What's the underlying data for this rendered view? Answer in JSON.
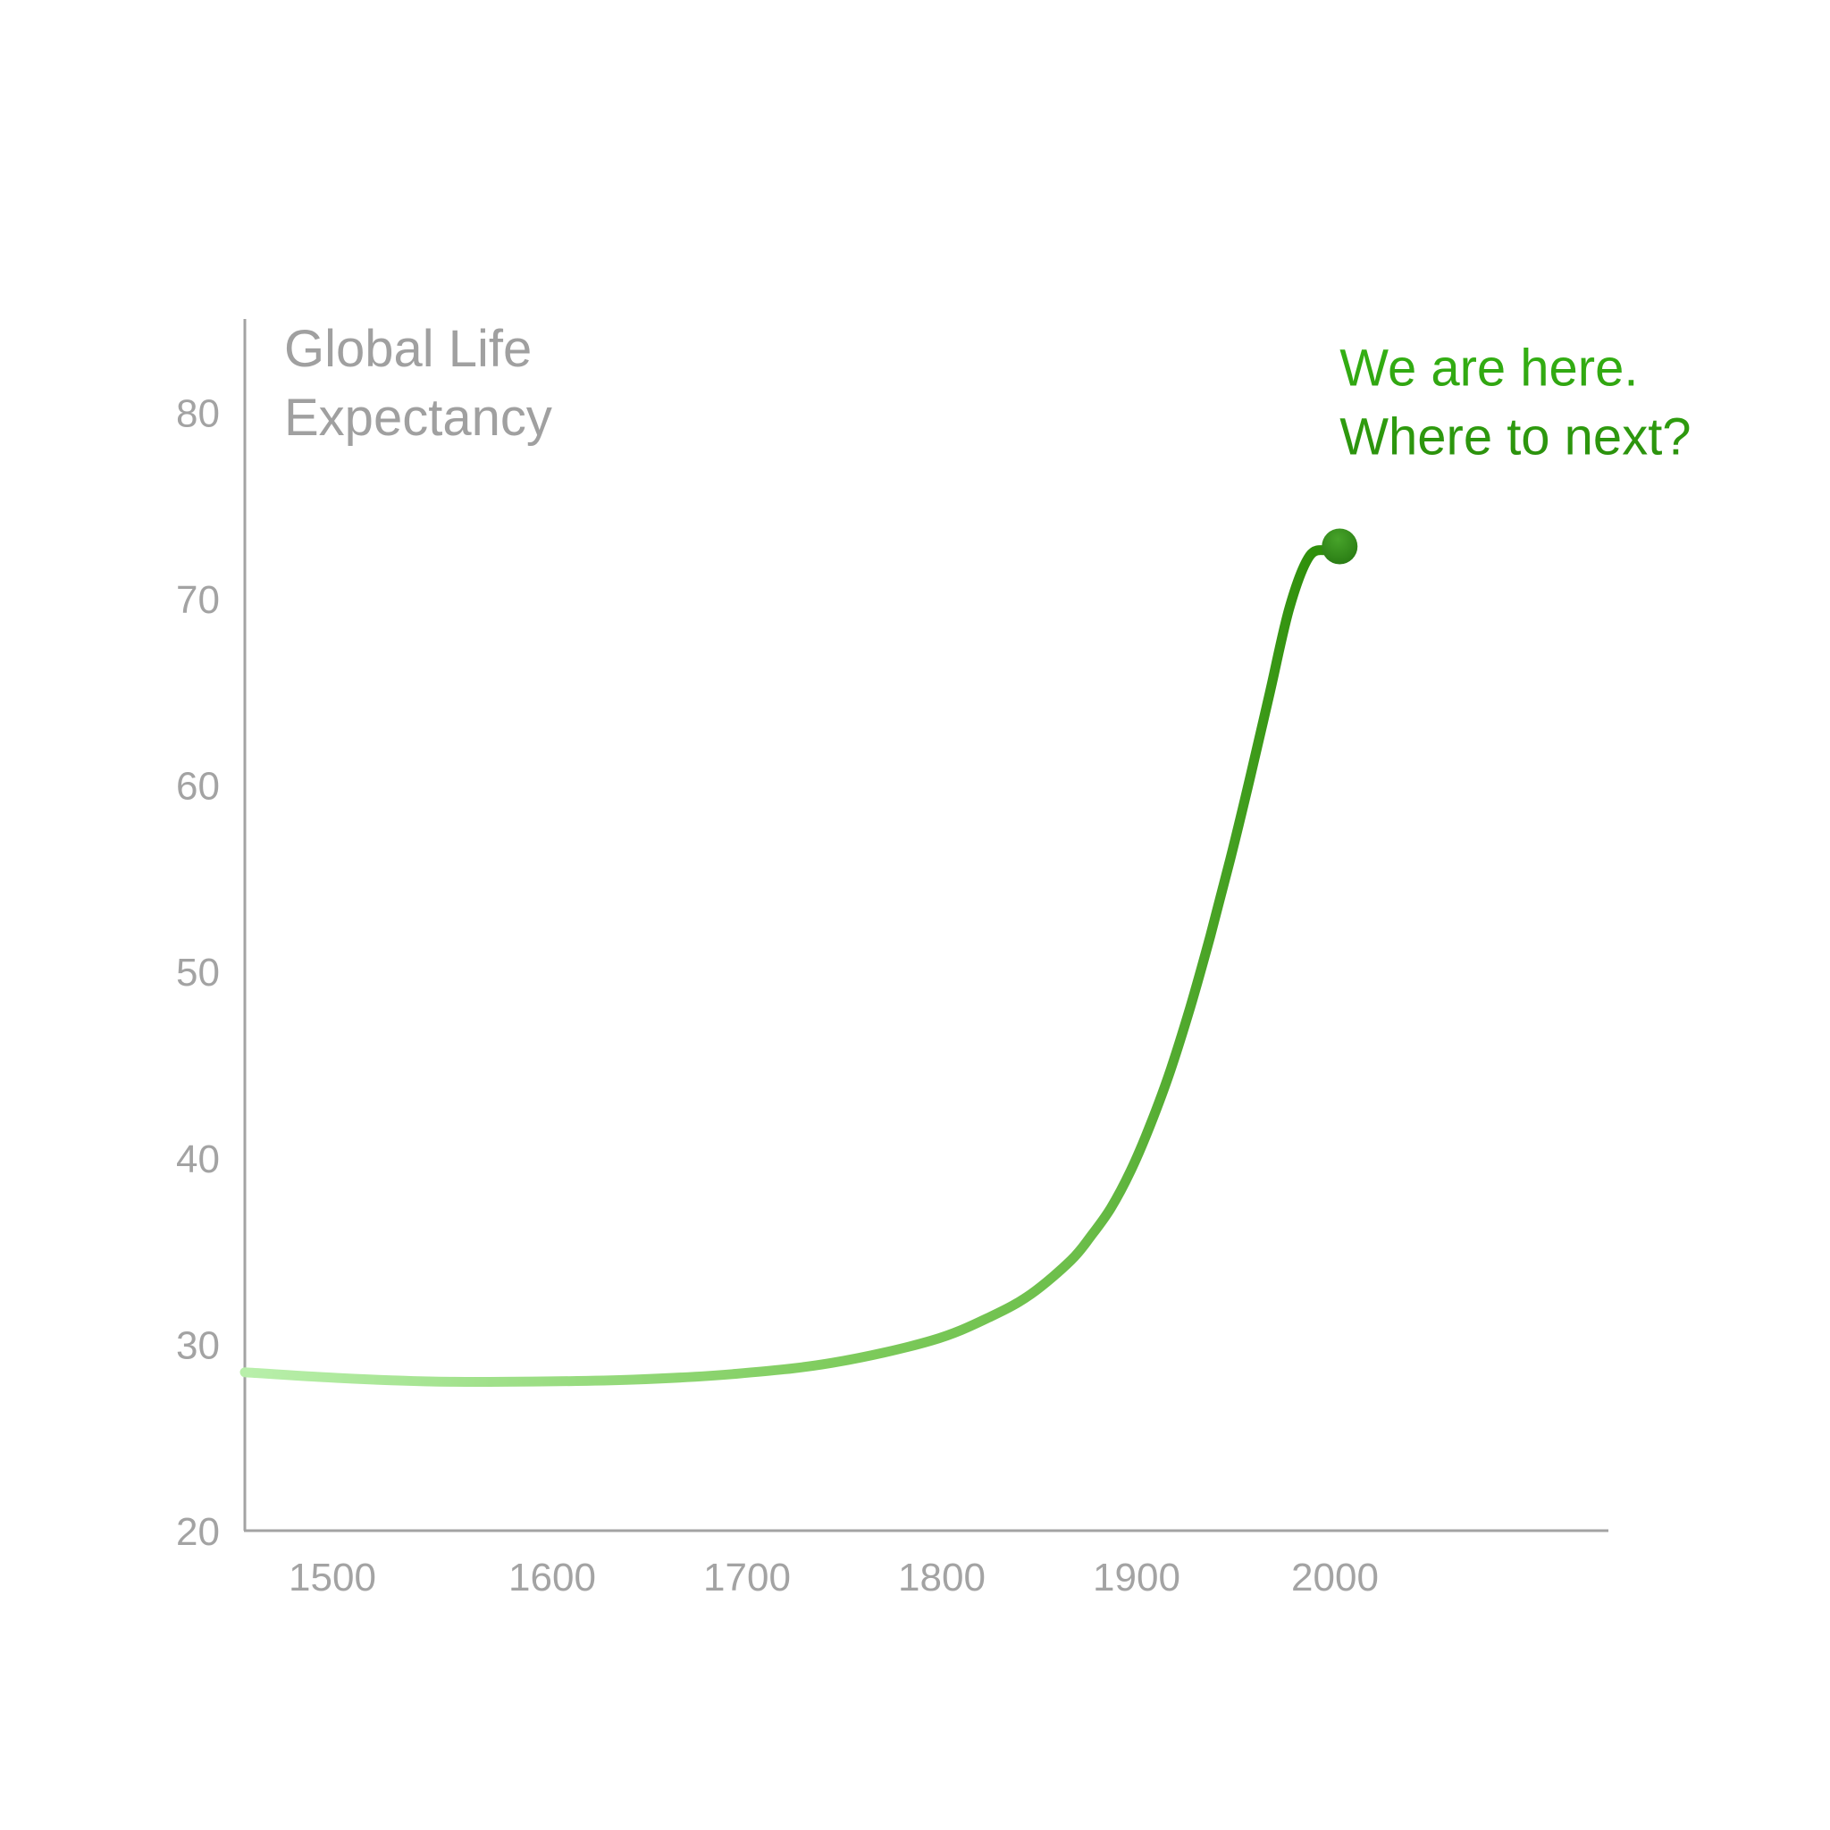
{
  "chart_data": {
    "type": "line",
    "title_lines": [
      "Global Life",
      "Expectancy"
    ],
    "xlabel": "",
    "ylabel": "",
    "x_ticks": [
      "1500",
      "1600",
      "1700",
      "1800",
      "1900",
      "2000"
    ],
    "y_ticks": [
      "20",
      "30",
      "40",
      "50",
      "60",
      "70",
      "80"
    ],
    "xlim": [
      1455,
      2140
    ],
    "ylim": [
      20,
      85
    ],
    "grid": false,
    "series": [
      {
        "x": [
          1455,
          1500,
          1550,
          1600,
          1650,
          1700,
          1750,
          1800,
          1830,
          1850,
          1870,
          1880,
          1890,
          1900,
          1910,
          1920,
          1930,
          1940,
          1950,
          1960,
          1970,
          1980,
          1990,
          2000,
          2005
        ],
        "y": [
          28.5,
          28.2,
          28.0,
          28.0,
          28.1,
          28.4,
          29.0,
          30.2,
          31.5,
          32.7,
          34.5,
          35.8,
          37.3,
          39.3,
          41.8,
          44.7,
          48.1,
          51.9,
          56.0,
          60.4,
          65.0,
          69.6,
          72.3,
          72.6,
          72.8
        ]
      }
    ],
    "annotation": {
      "lines": [
        "We are here.",
        "Where to next?"
      ],
      "x": 2005,
      "y": 72.8
    },
    "colors": {
      "axis": "#a3a3a3",
      "tick_text": "#a3a3a3",
      "title_text": "#a0a0a0",
      "line_start": "#b8efaa",
      "line_mid": "#6cbe4a",
      "line_end": "#2e8f0a",
      "marker_fill": "#2a7d14",
      "marker_highlight": "#47a32a",
      "annotation_top": "#34b314",
      "annotation_bottom": "#2b8f0c"
    }
  }
}
